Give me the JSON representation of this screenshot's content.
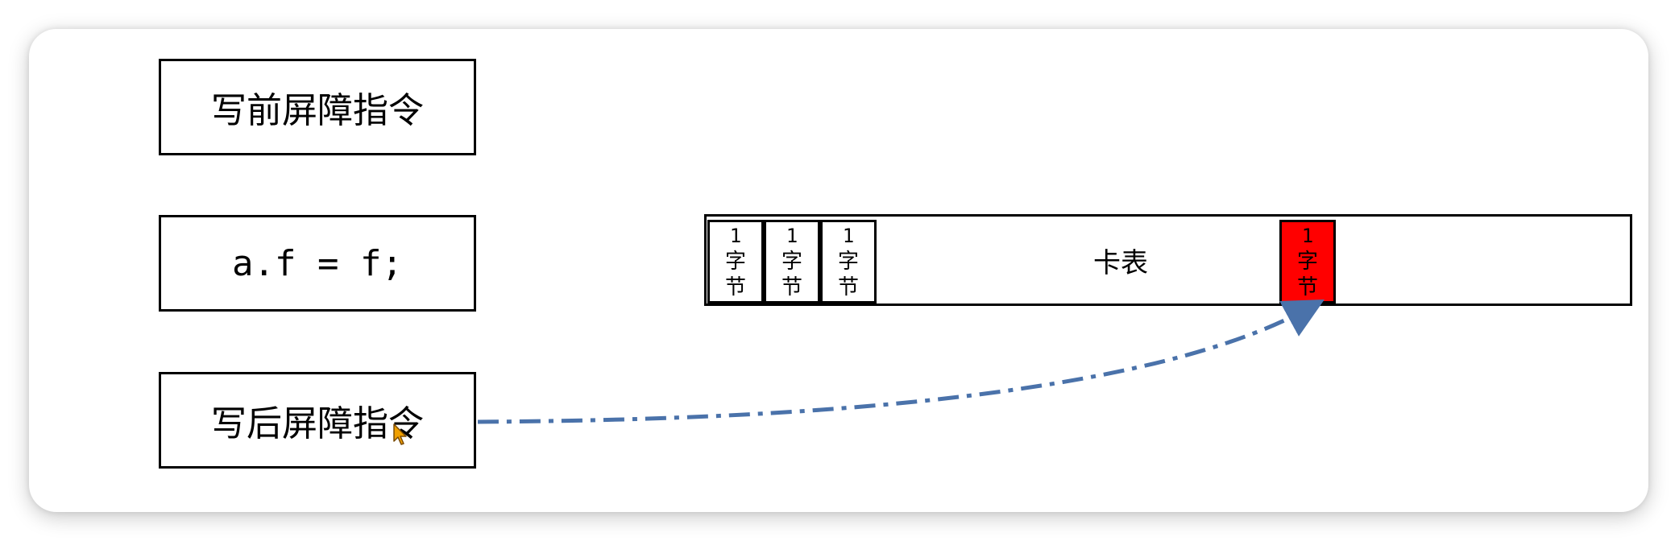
{
  "boxes": {
    "pre_barrier": "写前屏障指令",
    "assignment": "a.f = f;",
    "post_barrier": "写后屏障指令"
  },
  "card_table": {
    "label": "卡表",
    "cells": [
      {
        "num": "1",
        "char1": "字",
        "char2": "节"
      },
      {
        "num": "1",
        "char1": "字",
        "char2": "节"
      },
      {
        "num": "1",
        "char1": "字",
        "char2": "节"
      },
      {
        "num": "1",
        "char1": "字",
        "char2": "节"
      }
    ]
  },
  "colors": {
    "arrow": "#4a72aa",
    "marked_cell": "#ff0000",
    "cursor": "#f0a000"
  },
  "icons": {
    "cursor": "mouse-pointer-icon"
  }
}
